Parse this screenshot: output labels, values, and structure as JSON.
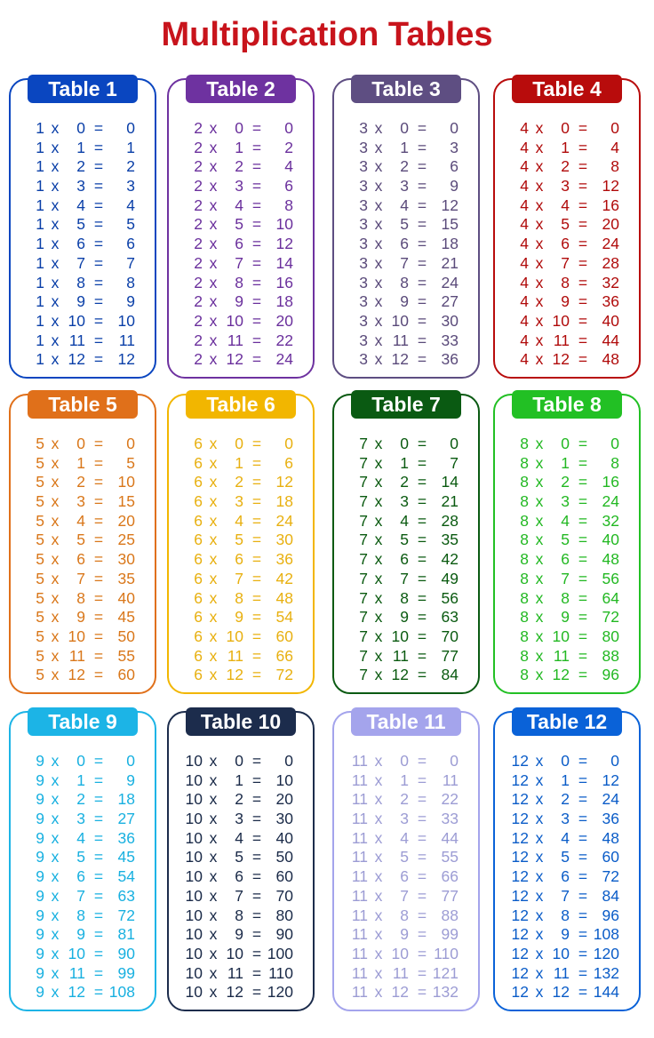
{
  "title": "Multiplication Tables",
  "times_symbol": "x",
  "equals_symbol": "=",
  "tables": [
    {
      "label": "Table 1",
      "header_color": "#0a46c0",
      "text_color": "#0a3fa8",
      "rows": [
        [
          1,
          0,
          0
        ],
        [
          1,
          1,
          1
        ],
        [
          1,
          2,
          2
        ],
        [
          1,
          3,
          3
        ],
        [
          1,
          4,
          4
        ],
        [
          1,
          5,
          5
        ],
        [
          1,
          6,
          6
        ],
        [
          1,
          7,
          7
        ],
        [
          1,
          8,
          8
        ],
        [
          1,
          9,
          9
        ],
        [
          1,
          10,
          10
        ],
        [
          1,
          11,
          11
        ],
        [
          1,
          12,
          12
        ]
      ]
    },
    {
      "label": "Table 2",
      "header_color": "#6e32a0",
      "text_color": "#6a2f9c",
      "rows": [
        [
          2,
          0,
          0
        ],
        [
          2,
          1,
          2
        ],
        [
          2,
          2,
          4
        ],
        [
          2,
          3,
          6
        ],
        [
          2,
          4,
          8
        ],
        [
          2,
          5,
          10
        ],
        [
          2,
          6,
          12
        ],
        [
          2,
          7,
          14
        ],
        [
          2,
          8,
          16
        ],
        [
          2,
          9,
          18
        ],
        [
          2,
          10,
          20
        ],
        [
          2,
          11,
          22
        ],
        [
          2,
          12,
          24
        ]
      ]
    },
    {
      "label": "Table 3",
      "header_color": "#5e4e82",
      "text_color": "#5a4a7a",
      "rows": [
        [
          3,
          0,
          0
        ],
        [
          3,
          1,
          3
        ],
        [
          3,
          2,
          6
        ],
        [
          3,
          3,
          9
        ],
        [
          3,
          4,
          12
        ],
        [
          3,
          5,
          15
        ],
        [
          3,
          6,
          18
        ],
        [
          3,
          7,
          21
        ],
        [
          3,
          8,
          24
        ],
        [
          3,
          9,
          27
        ],
        [
          3,
          10,
          30
        ],
        [
          3,
          11,
          33
        ],
        [
          3,
          12,
          36
        ]
      ]
    },
    {
      "label": "Table 4",
      "header_color": "#b80c0c",
      "text_color": "#b00a0a",
      "rows": [
        [
          4,
          0,
          0
        ],
        [
          4,
          1,
          4
        ],
        [
          4,
          2,
          8
        ],
        [
          4,
          3,
          12
        ],
        [
          4,
          4,
          16
        ],
        [
          4,
          5,
          20
        ],
        [
          4,
          6,
          24
        ],
        [
          4,
          7,
          28
        ],
        [
          4,
          8,
          32
        ],
        [
          4,
          9,
          36
        ],
        [
          4,
          10,
          40
        ],
        [
          4,
          11,
          44
        ],
        [
          4,
          12,
          48
        ]
      ]
    },
    {
      "label": "Table 5",
      "header_color": "#e0701a",
      "text_color": "#d9771a",
      "rows": [
        [
          5,
          0,
          0
        ],
        [
          5,
          1,
          5
        ],
        [
          5,
          2,
          10
        ],
        [
          5,
          3,
          15
        ],
        [
          5,
          4,
          20
        ],
        [
          5,
          5,
          25
        ],
        [
          5,
          6,
          30
        ],
        [
          5,
          7,
          35
        ],
        [
          5,
          8,
          40
        ],
        [
          5,
          9,
          45
        ],
        [
          5,
          10,
          50
        ],
        [
          5,
          11,
          55
        ],
        [
          5,
          12,
          60
        ]
      ]
    },
    {
      "label": "Table 6",
      "header_color": "#f2b600",
      "text_color": "#e8b010",
      "rows": [
        [
          6,
          0,
          0
        ],
        [
          6,
          1,
          6
        ],
        [
          6,
          2,
          12
        ],
        [
          6,
          3,
          18
        ],
        [
          6,
          4,
          24
        ],
        [
          6,
          5,
          30
        ],
        [
          6,
          6,
          36
        ],
        [
          6,
          7,
          42
        ],
        [
          6,
          8,
          48
        ],
        [
          6,
          9,
          54
        ],
        [
          6,
          10,
          60
        ],
        [
          6,
          11,
          66
        ],
        [
          6,
          12,
          72
        ]
      ]
    },
    {
      "label": "Table 7",
      "header_color": "#0a5a12",
      "text_color": "#0a5a10",
      "rows": [
        [
          7,
          0,
          0
        ],
        [
          7,
          1,
          7
        ],
        [
          7,
          2,
          14
        ],
        [
          7,
          3,
          21
        ],
        [
          7,
          4,
          28
        ],
        [
          7,
          5,
          35
        ],
        [
          7,
          6,
          42
        ],
        [
          7,
          7,
          49
        ],
        [
          7,
          8,
          56
        ],
        [
          7,
          9,
          63
        ],
        [
          7,
          10,
          70
        ],
        [
          7,
          11,
          77
        ],
        [
          7,
          12,
          84
        ]
      ]
    },
    {
      "label": "Table 8",
      "header_color": "#22c024",
      "text_color": "#22b822",
      "rows": [
        [
          8,
          0,
          0
        ],
        [
          8,
          1,
          8
        ],
        [
          8,
          2,
          16
        ],
        [
          8,
          3,
          24
        ],
        [
          8,
          4,
          32
        ],
        [
          8,
          5,
          40
        ],
        [
          8,
          6,
          48
        ],
        [
          8,
          7,
          56
        ],
        [
          8,
          8,
          64
        ],
        [
          8,
          9,
          72
        ],
        [
          8,
          10,
          80
        ],
        [
          8,
          11,
          88
        ],
        [
          8,
          12,
          96
        ]
      ]
    },
    {
      "label": "Table 9",
      "header_color": "#1cb4e6",
      "text_color": "#18b0e0",
      "rows": [
        [
          9,
          0,
          0
        ],
        [
          9,
          1,
          9
        ],
        [
          9,
          2,
          18
        ],
        [
          9,
          3,
          27
        ],
        [
          9,
          4,
          36
        ],
        [
          9,
          5,
          45
        ],
        [
          9,
          6,
          54
        ],
        [
          9,
          7,
          63
        ],
        [
          9,
          8,
          72
        ],
        [
          9,
          9,
          81
        ],
        [
          9,
          10,
          90
        ],
        [
          9,
          11,
          99
        ],
        [
          9,
          12,
          108
        ]
      ]
    },
    {
      "label": "Table 10",
      "header_color": "#1c2c4c",
      "text_color": "#1a2a48",
      "rows": [
        [
          10,
          0,
          0
        ],
        [
          10,
          1,
          10
        ],
        [
          10,
          2,
          20
        ],
        [
          10,
          3,
          30
        ],
        [
          10,
          4,
          40
        ],
        [
          10,
          5,
          50
        ],
        [
          10,
          6,
          60
        ],
        [
          10,
          7,
          70
        ],
        [
          10,
          8,
          80
        ],
        [
          10,
          9,
          90
        ],
        [
          10,
          10,
          100
        ],
        [
          10,
          11,
          110
        ],
        [
          10,
          12,
          120
        ]
      ]
    },
    {
      "label": "Table 11",
      "header_color": "#a4a4ec",
      "text_color": "#9c9cd4",
      "rows": [
        [
          11,
          0,
          0
        ],
        [
          11,
          1,
          11
        ],
        [
          11,
          2,
          22
        ],
        [
          11,
          3,
          33
        ],
        [
          11,
          4,
          44
        ],
        [
          11,
          5,
          55
        ],
        [
          11,
          6,
          66
        ],
        [
          11,
          7,
          77
        ],
        [
          11,
          8,
          88
        ],
        [
          11,
          9,
          99
        ],
        [
          11,
          10,
          110
        ],
        [
          11,
          11,
          121
        ],
        [
          11,
          12,
          132
        ]
      ]
    },
    {
      "label": "Table 12",
      "header_color": "#0a62d8",
      "text_color": "#0a5cc8",
      "rows": [
        [
          12,
          0,
          0
        ],
        [
          12,
          1,
          12
        ],
        [
          12,
          2,
          24
        ],
        [
          12,
          3,
          36
        ],
        [
          12,
          4,
          48
        ],
        [
          12,
          5,
          60
        ],
        [
          12,
          6,
          72
        ],
        [
          12,
          7,
          84
        ],
        [
          12,
          8,
          96
        ],
        [
          12,
          9,
          108
        ],
        [
          12,
          10,
          120
        ],
        [
          12,
          11,
          132
        ],
        [
          12,
          12,
          144
        ]
      ]
    }
  ]
}
